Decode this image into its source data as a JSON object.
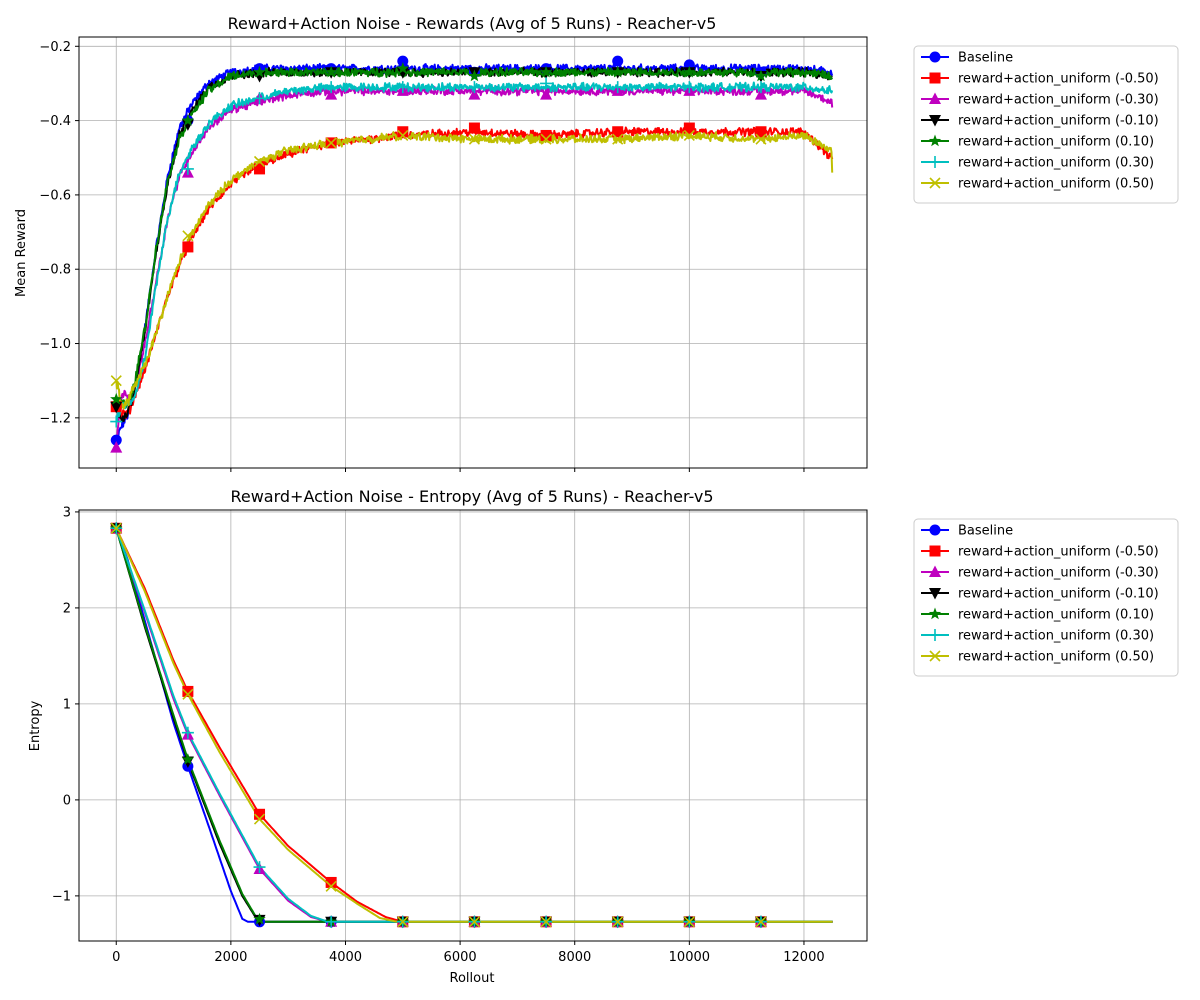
{
  "chart_data": [
    {
      "type": "line",
      "title": "Reward+Action Noise - Rewards (Avg of 5 Runs) - Reacher-v5",
      "xlabel": "",
      "ylabel": "Mean Reward",
      "xlim": [
        -650,
        13100
      ],
      "ylim": [
        -1.335,
        -0.175
      ],
      "yticks": [
        -1.2,
        -1.0,
        -0.8,
        -0.6,
        -0.4,
        -0.2
      ],
      "ytick_labels": [
        "−1.2",
        "−1.0",
        "−0.8",
        "−0.6",
        "−0.4",
        "−0.2"
      ],
      "xticks": [
        0,
        2000,
        4000,
        6000,
        8000,
        10000,
        12000
      ],
      "xtick_labels_visible": false,
      "grid": true,
      "legend_position": "outside-right-top",
      "series": [
        {
          "name": "Baseline",
          "color": "#0000ff",
          "marker": "circle",
          "x": [
            0,
            100,
            200,
            300,
            500,
            700,
            900,
            1100,
            1300,
            1600,
            2000,
            2500,
            3000,
            3750,
            5000,
            6250,
            7500,
            8750,
            10000,
            11250,
            12000,
            12480,
            12500
          ],
          "values": [
            -1.26,
            -1.22,
            -1.19,
            -1.14,
            -0.96,
            -0.74,
            -0.55,
            -0.42,
            -0.36,
            -0.3,
            -0.27,
            -0.26,
            -0.26,
            -0.26,
            -0.26,
            -0.26,
            -0.26,
            -0.26,
            -0.26,
            -0.26,
            -0.26,
            -0.27,
            -0.27
          ],
          "markers_at": [
            [
              0,
              -1.26
            ],
            [
              1250,
              -0.4
            ],
            [
              2500,
              -0.26
            ],
            [
              3750,
              -0.26
            ],
            [
              5000,
              -0.24
            ],
            [
              6250,
              -0.27
            ],
            [
              7500,
              -0.26
            ],
            [
              8750,
              -0.24
            ],
            [
              10000,
              -0.25
            ],
            [
              11250,
              -0.27
            ]
          ]
        },
        {
          "name": "reward+action_uniform (-0.50)",
          "color": "#ff0000",
          "marker": "square",
          "x": [
            0,
            100,
            200,
            300,
            500,
            700,
            900,
            1100,
            1300,
            1600,
            2000,
            2500,
            3000,
            3750,
            5000,
            6250,
            7500,
            8750,
            10000,
            11250,
            12000,
            12480,
            12500
          ],
          "values": [
            -1.17,
            -1.19,
            -1.19,
            -1.15,
            -1.07,
            -0.97,
            -0.87,
            -0.79,
            -0.72,
            -0.64,
            -0.57,
            -0.52,
            -0.49,
            -0.46,
            -0.44,
            -0.43,
            -0.44,
            -0.43,
            -0.43,
            -0.43,
            -0.43,
            -0.5,
            -0.51
          ],
          "markers_at": [
            [
              0,
              -1.17
            ],
            [
              1250,
              -0.74
            ],
            [
              2500,
              -0.53
            ],
            [
              3750,
              -0.46
            ],
            [
              5000,
              -0.43
            ],
            [
              6250,
              -0.42
            ],
            [
              7500,
              -0.44
            ],
            [
              8750,
              -0.43
            ],
            [
              10000,
              -0.42
            ],
            [
              11250,
              -0.43
            ]
          ]
        },
        {
          "name": "reward+action_uniform (-0.30)",
          "color": "#bf00bf",
          "marker": "triangle-up",
          "x": [
            0,
            100,
            200,
            300,
            500,
            700,
            900,
            1100,
            1300,
            1600,
            2000,
            2500,
            3000,
            3750,
            5000,
            6250,
            7500,
            8750,
            10000,
            11250,
            12000,
            12480,
            12500
          ],
          "values": [
            -1.28,
            -1.13,
            -1.15,
            -1.14,
            -1.0,
            -0.83,
            -0.66,
            -0.55,
            -0.49,
            -0.42,
            -0.37,
            -0.35,
            -0.33,
            -0.32,
            -0.32,
            -0.32,
            -0.32,
            -0.32,
            -0.32,
            -0.32,
            -0.32,
            -0.35,
            -0.37
          ],
          "markers_at": [
            [
              0,
              -1.28
            ],
            [
              1250,
              -0.54
            ],
            [
              2500,
              -0.34
            ],
            [
              3750,
              -0.33
            ],
            [
              5000,
              -0.32
            ],
            [
              6250,
              -0.33
            ],
            [
              7500,
              -0.33
            ],
            [
              8750,
              -0.32
            ],
            [
              10000,
              -0.32
            ],
            [
              11250,
              -0.33
            ]
          ]
        },
        {
          "name": "reward+action_uniform (-0.10)",
          "color": "#000000",
          "marker": "triangle-down",
          "x": [
            0,
            100,
            200,
            300,
            500,
            700,
            900,
            1100,
            1300,
            1600,
            2000,
            2500,
            3000,
            3750,
            5000,
            6250,
            7500,
            8750,
            10000,
            11250,
            12000,
            12480,
            12500
          ],
          "values": [
            -1.17,
            -1.21,
            -1.18,
            -1.14,
            -0.97,
            -0.75,
            -0.57,
            -0.44,
            -0.38,
            -0.31,
            -0.28,
            -0.27,
            -0.27,
            -0.27,
            -0.27,
            -0.27,
            -0.27,
            -0.27,
            -0.27,
            -0.27,
            -0.27,
            -0.28,
            -0.28
          ],
          "markers_at": [
            [
              0,
              -1.17
            ],
            [
              1250,
              -0.41
            ],
            [
              2500,
              -0.28
            ],
            [
              3750,
              -0.27
            ],
            [
              5000,
              -0.27
            ],
            [
              6250,
              -0.27
            ],
            [
              7500,
              -0.27
            ],
            [
              8750,
              -0.27
            ],
            [
              10000,
              -0.27
            ],
            [
              11250,
              -0.28
            ]
          ]
        },
        {
          "name": "reward+action_uniform (0.10)",
          "color": "#008000",
          "marker": "star",
          "x": [
            0,
            100,
            200,
            300,
            500,
            700,
            900,
            1100,
            1300,
            1600,
            2000,
            2500,
            3000,
            3750,
            5000,
            6250,
            7500,
            8750,
            10000,
            11250,
            12000,
            12480,
            12500
          ],
          "values": [
            -1.15,
            -1.16,
            -1.17,
            -1.12,
            -0.96,
            -0.74,
            -0.56,
            -0.45,
            -0.39,
            -0.32,
            -0.28,
            -0.27,
            -0.27,
            -0.27,
            -0.27,
            -0.27,
            -0.27,
            -0.27,
            -0.27,
            -0.27,
            -0.27,
            -0.28,
            -0.29
          ],
          "markers_at": [
            [
              0,
              -1.15
            ],
            [
              1250,
              -0.4
            ],
            [
              2500,
              -0.27
            ],
            [
              3750,
              -0.27
            ],
            [
              5000,
              -0.26
            ],
            [
              6250,
              -0.28
            ],
            [
              7500,
              -0.27
            ],
            [
              8750,
              -0.27
            ],
            [
              10000,
              -0.27
            ],
            [
              11250,
              -0.28
            ]
          ]
        },
        {
          "name": "reward+action_uniform (0.30)",
          "color": "#00bfbf",
          "marker": "plus",
          "x": [
            0,
            100,
            200,
            300,
            500,
            700,
            900,
            1100,
            1300,
            1600,
            2000,
            2500,
            3000,
            3750,
            5000,
            6250,
            7500,
            8750,
            10000,
            11250,
            12000,
            12480,
            12500
          ],
          "values": [
            -1.21,
            -1.17,
            -1.16,
            -1.16,
            -1.04,
            -0.84,
            -0.66,
            -0.54,
            -0.48,
            -0.41,
            -0.36,
            -0.34,
            -0.32,
            -0.31,
            -0.31,
            -0.31,
            -0.31,
            -0.31,
            -0.31,
            -0.31,
            -0.31,
            -0.32,
            -0.32
          ],
          "markers_at": [
            [
              0,
              -1.21
            ],
            [
              1250,
              -0.53
            ],
            [
              2500,
              -0.34
            ],
            [
              3750,
              -0.31
            ],
            [
              5000,
              -0.31
            ],
            [
              6250,
              -0.31
            ],
            [
              7500,
              -0.3
            ],
            [
              8750,
              -0.31
            ],
            [
              10000,
              -0.31
            ],
            [
              11250,
              -0.31
            ]
          ]
        },
        {
          "name": "reward+action_uniform (0.50)",
          "color": "#bfbf00",
          "marker": "x",
          "x": [
            0,
            100,
            200,
            300,
            500,
            700,
            900,
            1100,
            1300,
            1600,
            2000,
            2500,
            3000,
            3750,
            5000,
            6250,
            7500,
            8750,
            10000,
            11250,
            12000,
            12480,
            12500
          ],
          "values": [
            -1.1,
            -1.17,
            -1.16,
            -1.12,
            -1.06,
            -0.97,
            -0.87,
            -0.78,
            -0.71,
            -0.63,
            -0.56,
            -0.51,
            -0.48,
            -0.46,
            -0.44,
            -0.45,
            -0.45,
            -0.45,
            -0.44,
            -0.45,
            -0.44,
            -0.48,
            -0.58
          ],
          "markers_at": [
            [
              0,
              -1.1
            ],
            [
              1250,
              -0.71
            ],
            [
              2500,
              -0.51
            ],
            [
              3750,
              -0.46
            ],
            [
              5000,
              -0.44
            ],
            [
              6250,
              -0.45
            ],
            [
              7500,
              -0.45
            ],
            [
              8750,
              -0.45
            ],
            [
              10000,
              -0.44
            ],
            [
              11250,
              -0.45
            ]
          ]
        }
      ]
    },
    {
      "type": "line",
      "title": "Reward+Action Noise - Entropy (Avg of 5 Runs) - Reacher-v5",
      "xlabel": "Rollout",
      "ylabel": "Entropy",
      "xlim": [
        -650,
        13100
      ],
      "ylim": [
        -1.47,
        3.02
      ],
      "yticks": [
        -1,
        0,
        1,
        2,
        3
      ],
      "ytick_labels": [
        "−1",
        "0",
        "1",
        "2",
        "3"
      ],
      "xticks": [
        0,
        2000,
        4000,
        6000,
        8000,
        10000,
        12000
      ],
      "xtick_labels": [
        "0",
        "2000",
        "4000",
        "6000",
        "8000",
        "10000",
        "12000"
      ],
      "grid": true,
      "legend_position": "outside-right-top",
      "series": [
        {
          "name": "Baseline",
          "color": "#0000ff",
          "marker": "circle",
          "x": [
            0,
            200,
            600,
            1000,
            1250,
            1600,
            2000,
            2200,
            2300,
            2500,
            12500
          ],
          "values": [
            2.83,
            2.5,
            1.65,
            0.8,
            0.35,
            -0.25,
            -0.95,
            -1.24,
            -1.27,
            -1.27,
            -1.27
          ],
          "markers": [
            0,
            1250,
            2500,
            3750,
            5000,
            6250,
            7500,
            8750,
            10000,
            11250
          ]
        },
        {
          "name": "reward+action_uniform (-0.50)",
          "color": "#ff0000",
          "marker": "square",
          "x": [
            0,
            500,
            1000,
            1250,
            1800,
            2500,
            3000,
            3750,
            4200,
            4700,
            5000,
            12500
          ],
          "values": [
            2.83,
            2.2,
            1.45,
            1.13,
            0.55,
            -0.15,
            -0.48,
            -0.86,
            -1.06,
            -1.22,
            -1.27,
            -1.27
          ],
          "markers": [
            0,
            1250,
            2500,
            3750,
            5000,
            6250,
            7500,
            8750,
            10000,
            11250
          ]
        },
        {
          "name": "reward+action_uniform (-0.30)",
          "color": "#bf00bf",
          "marker": "triangle-up",
          "x": [
            0,
            500,
            1000,
            1250,
            1800,
            2500,
            3000,
            3400,
            3700,
            3850,
            12500
          ],
          "values": [
            2.83,
            1.95,
            1.05,
            0.68,
            0.05,
            -0.72,
            -1.05,
            -1.22,
            -1.27,
            -1.27,
            -1.27
          ],
          "markers": [
            0,
            1250,
            2500,
            3750,
            5000,
            6250,
            7500,
            8750,
            10000,
            11250
          ]
        },
        {
          "name": "reward+action_uniform (-0.10)",
          "color": "#000000",
          "marker": "triangle-down",
          "x": [
            0,
            500,
            1000,
            1250,
            1800,
            2200,
            2450,
            2600,
            12500
          ],
          "values": [
            2.83,
            1.8,
            0.85,
            0.4,
            -0.45,
            -1.0,
            -1.24,
            -1.27,
            -1.27
          ],
          "markers": [
            0,
            1250,
            2500,
            3750,
            5000,
            6250,
            7500,
            8750,
            10000,
            11250
          ]
        },
        {
          "name": "reward+action_uniform (0.10)",
          "color": "#008000",
          "marker": "star",
          "x": [
            0,
            500,
            1000,
            1250,
            1800,
            2200,
            2450,
            2600,
            12500
          ],
          "values": [
            2.83,
            1.82,
            0.88,
            0.42,
            -0.42,
            -0.98,
            -1.23,
            -1.27,
            -1.27
          ],
          "markers": [
            0,
            1250,
            2500,
            3750,
            5000,
            6250,
            7500,
            8750,
            10000,
            11250
          ]
        },
        {
          "name": "reward+action_uniform (0.30)",
          "color": "#00bfbf",
          "marker": "plus",
          "x": [
            0,
            500,
            1000,
            1250,
            1800,
            2500,
            3000,
            3400,
            3700,
            3850,
            12500
          ],
          "values": [
            2.83,
            1.97,
            1.08,
            0.7,
            0.07,
            -0.7,
            -1.03,
            -1.21,
            -1.27,
            -1.27,
            -1.27
          ],
          "markers": [
            0,
            1250,
            2500,
            3750,
            5000,
            6250,
            7500,
            8750,
            10000,
            11250
          ]
        },
        {
          "name": "reward+action_uniform (0.50)",
          "color": "#bfbf00",
          "marker": "x",
          "x": [
            0,
            500,
            1000,
            1250,
            1800,
            2500,
            3000,
            3750,
            4200,
            4600,
            4900,
            12500
          ],
          "values": [
            2.83,
            2.17,
            1.42,
            1.1,
            0.5,
            -0.2,
            -0.52,
            -0.9,
            -1.08,
            -1.23,
            -1.27,
            -1.27
          ],
          "markers": [
            0,
            1250,
            2500,
            3750,
            5000,
            6250,
            7500,
            8750,
            10000,
            11250
          ]
        }
      ]
    }
  ]
}
